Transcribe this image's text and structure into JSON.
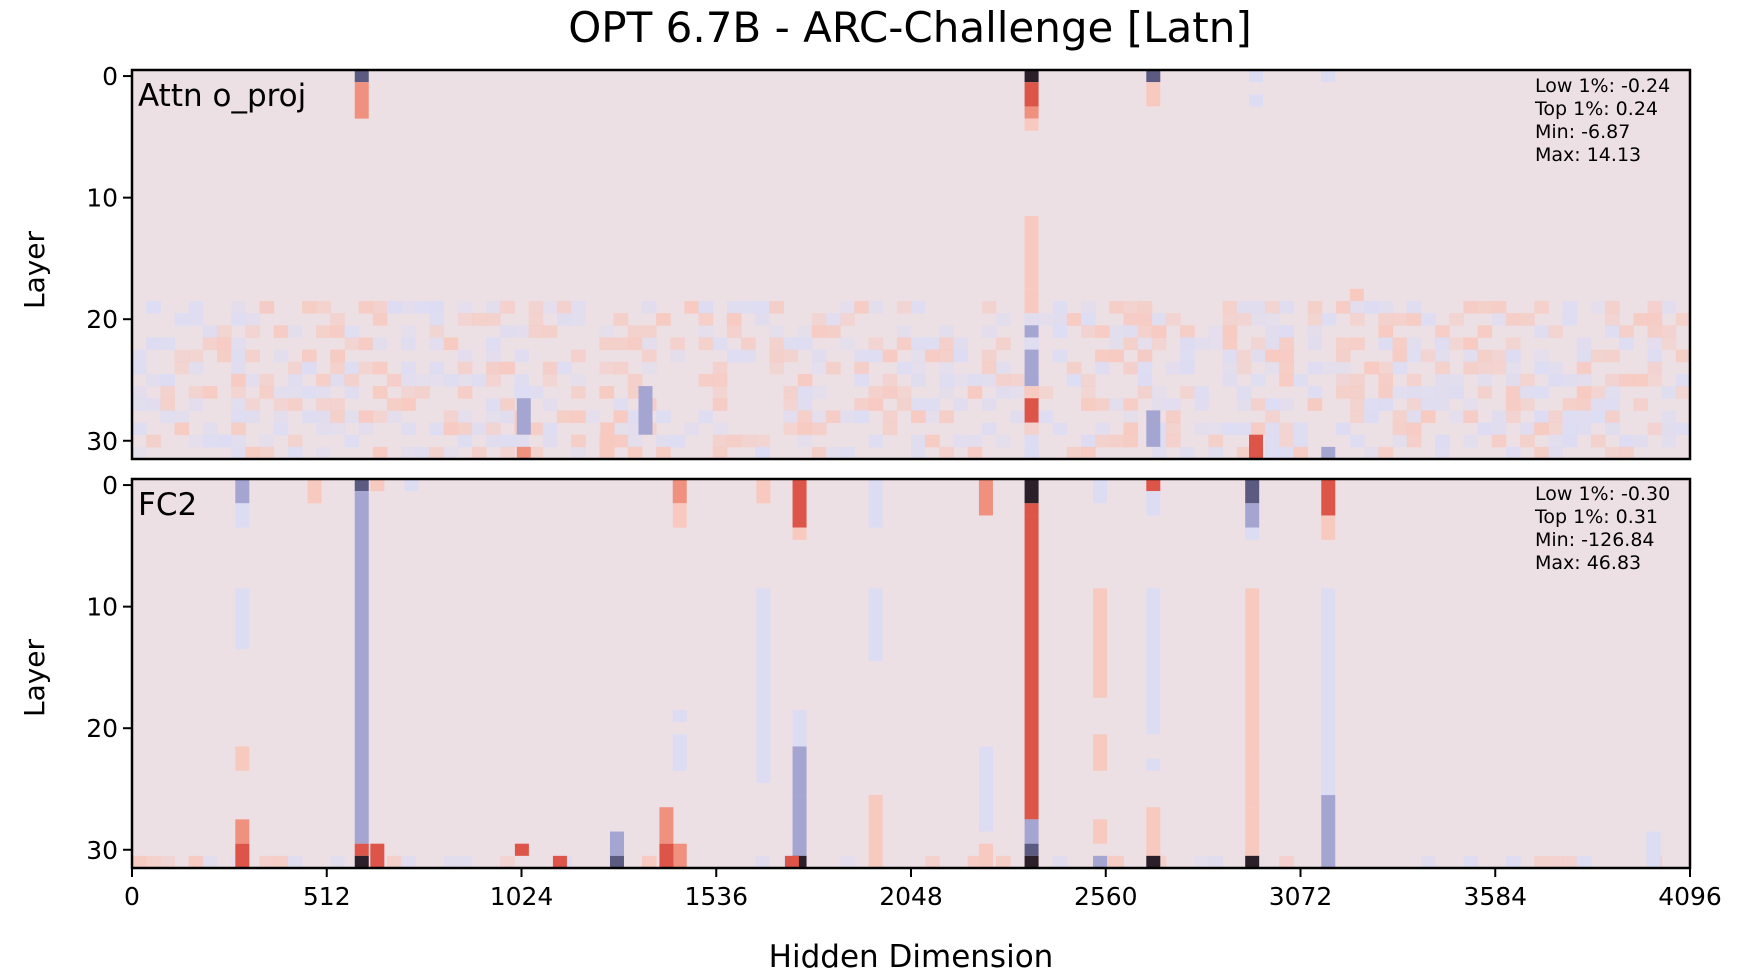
{
  "title": "OPT 6.7B - ARC-Challenge [Latn]",
  "xlabel": "Hidden Dimension",
  "colors": {
    "background": "#ede0e5",
    "positive_light": "#f7c9bf",
    "positive_mid": "#f0917f",
    "positive_strong": "#dd5548",
    "negative_light": "#dcdcf3",
    "negative_mid": "#a5a5d2",
    "negative_strong": "#5b5b82",
    "extreme": "#2b1f2a"
  },
  "chart_data": [
    {
      "type": "heatmap",
      "panel_label": "Attn o_proj",
      "ylabel": "Layer",
      "xlim": [
        0,
        4096
      ],
      "ylim": [
        31,
        0
      ],
      "xticks": [
        0,
        512,
        1024,
        1536,
        2048,
        2560,
        3072,
        3584,
        4096
      ],
      "yticks": [
        0,
        10,
        20,
        30
      ],
      "layers": 32,
      "stats": {
        "low": "Low 1%: -0.24",
        "top": "Top 1%: 0.24",
        "min": "Min: -6.87",
        "max": "Max: 14.13"
      },
      "columns": [
        {
          "dim": 604,
          "segments": [
            {
              "from": 0,
              "to": 0,
              "level": -3
            },
            {
              "from": 1,
              "to": 3,
              "level": 2
            }
          ]
        },
        {
          "dim": 2365,
          "segments": [
            {
              "from": 0,
              "to": 0,
              "level": 4
            },
            {
              "from": 1,
              "to": 2,
              "level": 3
            },
            {
              "from": 3,
              "to": 3,
              "level": 2
            },
            {
              "from": 4,
              "to": 4,
              "level": 1
            },
            {
              "from": 12,
              "to": 17,
              "level": 1
            },
            {
              "from": 18,
              "to": 19,
              "level": 1
            },
            {
              "from": 21,
              "to": 21,
              "level": -2
            },
            {
              "from": 23,
              "to": 25,
              "level": -2
            },
            {
              "from": 27,
              "to": 28,
              "level": 3
            },
            {
              "from": 30,
              "to": 31,
              "level": -1
            }
          ]
        },
        {
          "dim": 2685,
          "segments": [
            {
              "from": 0,
              "to": 0,
              "level": -3
            },
            {
              "from": 1,
              "to": 2,
              "level": 1
            }
          ]
        },
        {
          "dim": 2955,
          "segments": [
            {
              "from": 0,
              "to": 0,
              "level": -1
            },
            {
              "from": 2,
              "to": 2,
              "level": -1
            },
            {
              "from": 30,
              "to": 31,
              "level": 3
            }
          ]
        },
        {
          "dim": 3145,
          "segments": [
            {
              "from": 0,
              "to": 0,
              "level": -1
            },
            {
              "from": 31,
              "to": 31,
              "level": -2
            }
          ]
        },
        {
          "dim": 3220,
          "segments": [
            {
              "from": 18,
              "to": 18,
              "level": 1
            }
          ]
        },
        {
          "dim": 1030,
          "segments": [
            {
              "from": 27,
              "to": 29,
              "level": -2
            },
            {
              "from": 31,
              "to": 31,
              "level": 2
            }
          ]
        },
        {
          "dim": 1350,
          "segments": [
            {
              "from": 26,
              "to": 29,
              "level": -2
            }
          ]
        },
        {
          "dim": 1250,
          "segments": [
            {
              "from": 29,
              "to": 31,
              "level": 1
            }
          ]
        },
        {
          "dim": 2685,
          "segments": [
            {
              "from": 28,
              "to": 30,
              "level": -2
            }
          ]
        }
      ],
      "noise_region": {
        "from_layer": 19,
        "to_layer": 31
      }
    },
    {
      "type": "heatmap",
      "panel_label": "FC2",
      "ylabel": "Layer",
      "xlim": [
        0,
        4096
      ],
      "ylim": [
        31,
        0
      ],
      "xticks": [
        0,
        512,
        1024,
        1536,
        2048,
        2560,
        3072,
        3584,
        4096
      ],
      "yticks": [
        0,
        10,
        20,
        30
      ],
      "layers": 32,
      "stats": {
        "low": "Low 1%: -0.30",
        "top": "Top 1%: 0.31",
        "min": "Min: -126.84",
        "max": "Max: 46.83"
      },
      "columns": [
        {
          "dim": 290,
          "segments": [
            {
              "from": 0,
              "to": 1,
              "level": -2
            },
            {
              "from": 2,
              "to": 3,
              "level": -1
            },
            {
              "from": 9,
              "to": 13,
              "level": -1
            },
            {
              "from": 22,
              "to": 23,
              "level": 1
            },
            {
              "from": 28,
              "to": 29,
              "level": 2
            },
            {
              "from": 30,
              "to": 31,
              "level": 3
            }
          ]
        },
        {
          "dim": 480,
          "segments": [
            {
              "from": 0,
              "to": 1,
              "level": 1
            }
          ]
        },
        {
          "dim": 604,
          "segments": [
            {
              "from": 0,
              "to": 0,
              "level": -3
            },
            {
              "from": 1,
              "to": 29,
              "level": -2
            },
            {
              "from": 30,
              "to": 30,
              "level": 3
            },
            {
              "from": 31,
              "to": 31,
              "level": 4
            }
          ]
        },
        {
          "dim": 645,
          "segments": [
            {
              "from": 0,
              "to": 0,
              "level": 1
            },
            {
              "from": 30,
              "to": 31,
              "level": 3
            }
          ]
        },
        {
          "dim": 735,
          "segments": [
            {
              "from": 0,
              "to": 0,
              "level": -1
            }
          ]
        },
        {
          "dim": 1440,
          "segments": [
            {
              "from": 0,
              "to": 1,
              "level": 2
            },
            {
              "from": 2,
              "to": 3,
              "level": 1
            },
            {
              "from": 19,
              "to": 19,
              "level": -1
            },
            {
              "from": 21,
              "to": 23,
              "level": -1
            },
            {
              "from": 30,
              "to": 31,
              "level": 2
            }
          ]
        },
        {
          "dim": 1660,
          "segments": [
            {
              "from": 0,
              "to": 1,
              "level": 1
            },
            {
              "from": 9,
              "to": 24,
              "level": -1
            }
          ]
        },
        {
          "dim": 1755,
          "segments": [
            {
              "from": 0,
              "to": 3,
              "level": 3
            },
            {
              "from": 4,
              "to": 4,
              "level": 1
            },
            {
              "from": 19,
              "to": 21,
              "level": -1
            },
            {
              "from": 22,
              "to": 25,
              "level": -2
            },
            {
              "from": 26,
              "to": 28,
              "level": -2
            },
            {
              "from": 29,
              "to": 30,
              "level": -2
            },
            {
              "from": 31,
              "to": 31,
              "level": 4
            }
          ]
        },
        {
          "dim": 1955,
          "segments": [
            {
              "from": 0,
              "to": 3,
              "level": -1
            },
            {
              "from": 9,
              "to": 14,
              "level": -1
            },
            {
              "from": 26,
              "to": 31,
              "level": 1
            }
          ]
        },
        {
          "dim": 2245,
          "segments": [
            {
              "from": 0,
              "to": 2,
              "level": 2
            },
            {
              "from": 22,
              "to": 28,
              "level": -1
            },
            {
              "from": 30,
              "to": 31,
              "level": 1
            }
          ]
        },
        {
          "dim": 2365,
          "segments": [
            {
              "from": 0,
              "to": 1,
              "level": 4
            },
            {
              "from": 2,
              "to": 2,
              "level": 3
            },
            {
              "from": 3,
              "to": 27,
              "level": 3
            },
            {
              "from": 28,
              "to": 29,
              "level": -2
            },
            {
              "from": 30,
              "to": 30,
              "level": -3
            },
            {
              "from": 31,
              "to": 31,
              "level": 4
            }
          ]
        },
        {
          "dim": 2545,
          "segments": [
            {
              "from": 0,
              "to": 1,
              "level": -1
            },
            {
              "from": 9,
              "to": 17,
              "level": 1
            },
            {
              "from": 21,
              "to": 23,
              "level": 1
            },
            {
              "from": 28,
              "to": 29,
              "level": 1
            },
            {
              "from": 31,
              "to": 31,
              "level": -2
            }
          ]
        },
        {
          "dim": 2685,
          "segments": [
            {
              "from": 0,
              "to": 0,
              "level": 3
            },
            {
              "from": 1,
              "to": 2,
              "level": -1
            },
            {
              "from": 9,
              "to": 20,
              "level": -1
            },
            {
              "from": 23,
              "to": 23,
              "level": -1
            },
            {
              "from": 27,
              "to": 30,
              "level": 1
            },
            {
              "from": 31,
              "to": 31,
              "level": 4
            }
          ]
        },
        {
          "dim": 2945,
          "segments": [
            {
              "from": 0,
              "to": 1,
              "level": -3
            },
            {
              "from": 2,
              "to": 3,
              "level": -2
            },
            {
              "from": 4,
              "to": 4,
              "level": -1
            },
            {
              "from": 9,
              "to": 22,
              "level": 1
            },
            {
              "from": 23,
              "to": 26,
              "level": 1
            },
            {
              "from": 27,
              "to": 30,
              "level": 1
            },
            {
              "from": 31,
              "to": 31,
              "level": 4
            }
          ]
        },
        {
          "dim": 3145,
          "segments": [
            {
              "from": 0,
              "to": 2,
              "level": 3
            },
            {
              "from": 3,
              "to": 4,
              "level": 1
            },
            {
              "from": 9,
              "to": 25,
              "level": -1
            },
            {
              "from": 26,
              "to": 28,
              "level": -2
            },
            {
              "from": 29,
              "to": 31,
              "level": -2
            }
          ]
        },
        {
          "dim": 1275,
          "segments": [
            {
              "from": 29,
              "to": 30,
              "level": -2
            },
            {
              "from": 31,
              "to": 31,
              "level": -3
            }
          ]
        },
        {
          "dim": 1405,
          "segments": [
            {
              "from": 27,
              "to": 29,
              "level": 2
            },
            {
              "from": 30,
              "to": 31,
              "level": 3
            }
          ]
        },
        {
          "dim": 1025,
          "segments": [
            {
              "from": 30,
              "to": 30,
              "level": 3
            }
          ]
        },
        {
          "dim": 1125,
          "segments": [
            {
              "from": 31,
              "to": 31,
              "level": 3
            }
          ]
        },
        {
          "dim": 1735,
          "segments": [
            {
              "from": 31,
              "to": 31,
              "level": 3
            }
          ]
        },
        {
          "dim": 4000,
          "segments": [
            {
              "from": 29,
              "to": 31,
              "level": -1
            }
          ]
        }
      ],
      "noise_region": {
        "from_layer": 31,
        "to_layer": 31
      }
    }
  ]
}
